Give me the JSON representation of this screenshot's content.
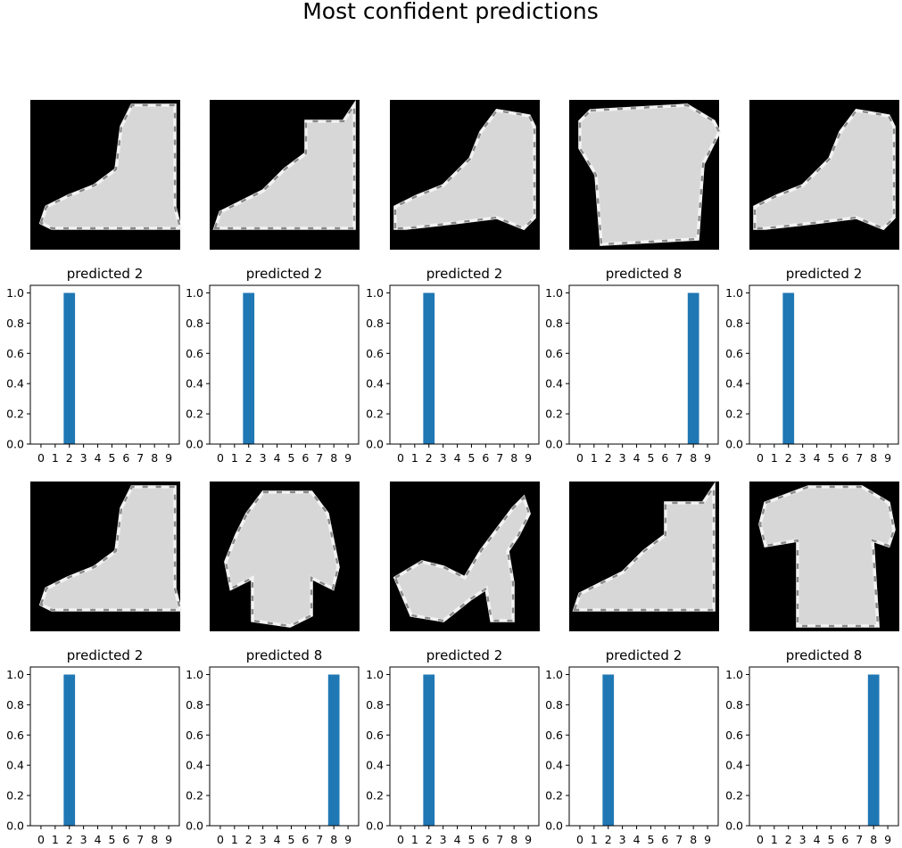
{
  "figure": {
    "title": "Most confident predictions"
  },
  "palette": {
    "bar": "#1f77b4",
    "image_background": "#000000",
    "axis": "#000000"
  },
  "chart_data": [
    {
      "type": "bar",
      "title": "predicted 2",
      "categories": [
        "0",
        "1",
        "2",
        "3",
        "4",
        "5",
        "6",
        "7",
        "8",
        "9"
      ],
      "values": [
        0,
        0,
        1,
        0,
        0,
        0,
        0,
        0,
        0,
        0
      ],
      "ylim": [
        0,
        1.05
      ],
      "yticks": [
        "0.0",
        "0.2",
        "0.4",
        "0.6",
        "0.8",
        "1.0"
      ],
      "image": "ankle-boot",
      "image_silhouette": "boot-a"
    },
    {
      "type": "bar",
      "title": "predicted 2",
      "categories": [
        "0",
        "1",
        "2",
        "3",
        "4",
        "5",
        "6",
        "7",
        "8",
        "9"
      ],
      "values": [
        0,
        0,
        1,
        0,
        0,
        0,
        0,
        0,
        0,
        0
      ],
      "ylim": [
        0,
        1.05
      ],
      "yticks": [
        "0.0",
        "0.2",
        "0.4",
        "0.6",
        "0.8",
        "1.0"
      ],
      "image": "ankle-boot",
      "image_silhouette": "boot-b"
    },
    {
      "type": "bar",
      "title": "predicted 2",
      "categories": [
        "0",
        "1",
        "2",
        "3",
        "4",
        "5",
        "6",
        "7",
        "8",
        "9"
      ],
      "values": [
        0,
        0,
        1,
        0,
        0,
        0,
        0,
        0,
        0,
        0
      ],
      "ylim": [
        0,
        1.05
      ],
      "yticks": [
        "0.0",
        "0.2",
        "0.4",
        "0.6",
        "0.8",
        "1.0"
      ],
      "image": "ankle-boot",
      "image_silhouette": "boot-c"
    },
    {
      "type": "bar",
      "title": "predicted 8",
      "categories": [
        "0",
        "1",
        "2",
        "3",
        "4",
        "5",
        "6",
        "7",
        "8",
        "9"
      ],
      "values": [
        0,
        0,
        0,
        0,
        0,
        0,
        0,
        0,
        1,
        0
      ],
      "ylim": [
        0,
        1.05
      ],
      "yticks": [
        "0.0",
        "0.2",
        "0.4",
        "0.6",
        "0.8",
        "1.0"
      ],
      "image": "bag",
      "image_silhouette": "bag-a"
    },
    {
      "type": "bar",
      "title": "predicted 2",
      "categories": [
        "0",
        "1",
        "2",
        "3",
        "4",
        "5",
        "6",
        "7",
        "8",
        "9"
      ],
      "values": [
        0,
        0,
        1,
        0,
        0,
        0,
        0,
        0,
        0,
        0
      ],
      "ylim": [
        0,
        1.05
      ],
      "yticks": [
        "0.0",
        "0.2",
        "0.4",
        "0.6",
        "0.8",
        "1.0"
      ],
      "image": "ankle-boot",
      "image_silhouette": "boot-c"
    },
    {
      "type": "bar",
      "title": "predicted 2",
      "categories": [
        "0",
        "1",
        "2",
        "3",
        "4",
        "5",
        "6",
        "7",
        "8",
        "9"
      ],
      "values": [
        0,
        0,
        1,
        0,
        0,
        0,
        0,
        0,
        0,
        0
      ],
      "ylim": [
        0,
        1.05
      ],
      "yticks": [
        "0.0",
        "0.2",
        "0.4",
        "0.6",
        "0.8",
        "1.0"
      ],
      "image": "ankle-boot",
      "image_silhouette": "boot-a"
    },
    {
      "type": "bar",
      "title": "predicted 8",
      "categories": [
        "0",
        "1",
        "2",
        "3",
        "4",
        "5",
        "6",
        "7",
        "8",
        "9"
      ],
      "values": [
        0,
        0,
        0,
        0,
        0,
        0,
        0,
        0,
        1,
        0
      ],
      "ylim": [
        0,
        1.05
      ],
      "yticks": [
        "0.0",
        "0.2",
        "0.4",
        "0.6",
        "0.8",
        "1.0"
      ],
      "image": "dress",
      "image_silhouette": "dress-a"
    },
    {
      "type": "bar",
      "title": "predicted 2",
      "categories": [
        "0",
        "1",
        "2",
        "3",
        "4",
        "5",
        "6",
        "7",
        "8",
        "9"
      ],
      "values": [
        0,
        0,
        1,
        0,
        0,
        0,
        0,
        0,
        0,
        0
      ],
      "ylim": [
        0,
        1.05
      ],
      "yticks": [
        "0.0",
        "0.2",
        "0.4",
        "0.6",
        "0.8",
        "1.0"
      ],
      "image": "sandal",
      "image_silhouette": "sandal-a"
    },
    {
      "type": "bar",
      "title": "predicted 2",
      "categories": [
        "0",
        "1",
        "2",
        "3",
        "4",
        "5",
        "6",
        "7",
        "8",
        "9"
      ],
      "values": [
        0,
        0,
        1,
        0,
        0,
        0,
        0,
        0,
        0,
        0
      ],
      "ylim": [
        0,
        1.05
      ],
      "yticks": [
        "0.0",
        "0.2",
        "0.4",
        "0.6",
        "0.8",
        "1.0"
      ],
      "image": "ankle-boot",
      "image_silhouette": "boot-b"
    },
    {
      "type": "bar",
      "title": "predicted 8",
      "categories": [
        "0",
        "1",
        "2",
        "3",
        "4",
        "5",
        "6",
        "7",
        "8",
        "9"
      ],
      "values": [
        0,
        0,
        0,
        0,
        0,
        0,
        0,
        0,
        1,
        0
      ],
      "ylim": [
        0,
        1.05
      ],
      "yticks": [
        "0.0",
        "0.2",
        "0.4",
        "0.6",
        "0.8",
        "1.0"
      ],
      "image": "bag",
      "image_silhouette": "bag-b"
    }
  ]
}
